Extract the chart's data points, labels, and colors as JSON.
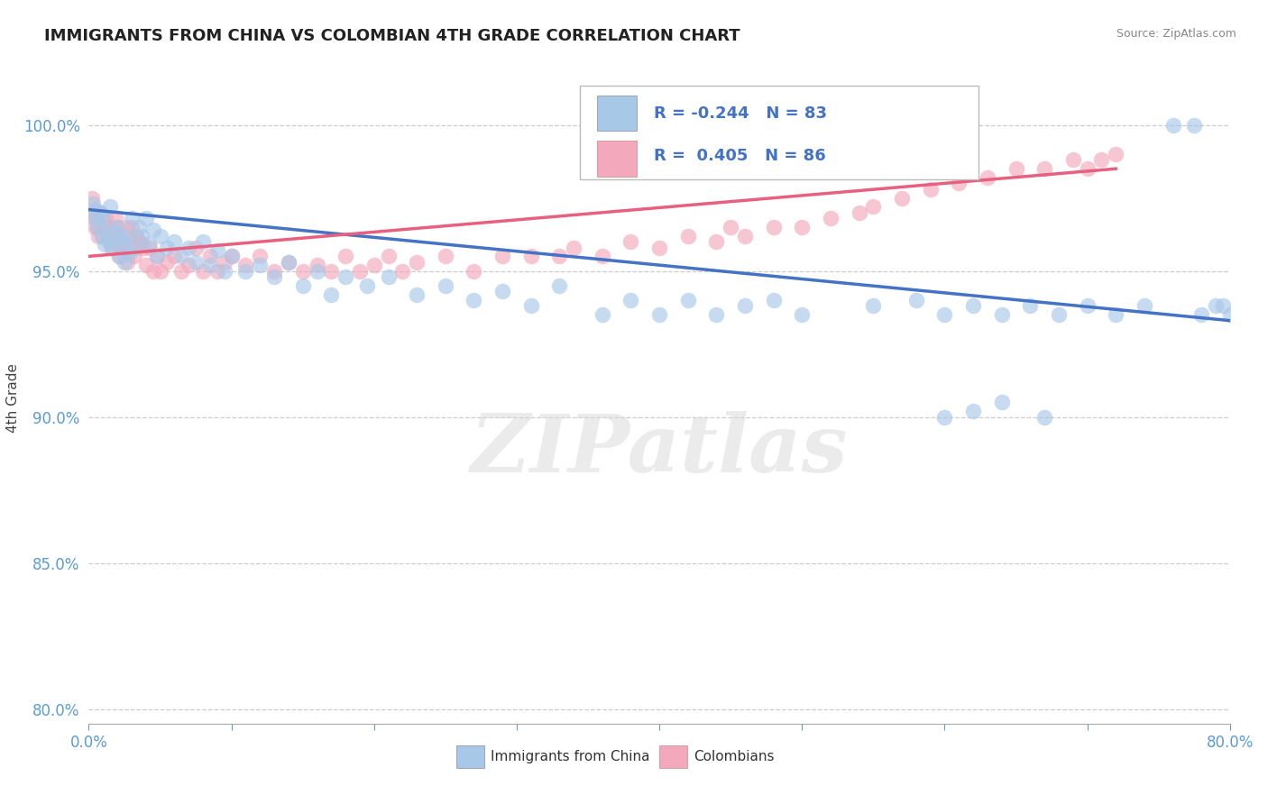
{
  "title": "IMMIGRANTS FROM CHINA VS COLOMBIAN 4TH GRADE CORRELATION CHART",
  "source_text": "Source: ZipAtlas.com",
  "ylabel": "4th Grade",
  "x_ticks": [
    0.0,
    10.0,
    20.0,
    30.0,
    40.0,
    50.0,
    60.0,
    70.0,
    80.0
  ],
  "y_ticks": [
    80.0,
    85.0,
    90.0,
    95.0,
    100.0
  ],
  "y_tick_labels": [
    "80.0%",
    "85.0%",
    "90.0%",
    "95.0%",
    "100.0%"
  ],
  "xlim": [
    0.0,
    80.0
  ],
  "ylim": [
    79.5,
    101.8
  ],
  "R_blue": -0.244,
  "N_blue": 83,
  "R_pink": 0.405,
  "N_pink": 86,
  "blue_dot_color": "#a8c8e8",
  "pink_dot_color": "#f4a8bc",
  "blue_line_color": "#4472c4",
  "pink_line_color": "#e86080",
  "legend_label_blue": "Immigrants from China",
  "legend_label_pink": "Colombians",
  "watermark": "ZIPatlas",
  "blue_line_x0": 0.0,
  "blue_line_y0": 97.1,
  "blue_line_x1": 80.0,
  "blue_line_y1": 93.3,
  "pink_line_x0": 0.0,
  "pink_line_y0": 95.5,
  "pink_line_x1": 72.0,
  "pink_line_y1": 98.5,
  "blue_scatter_x": [
    0.3,
    0.4,
    0.5,
    0.6,
    0.8,
    0.9,
    1.0,
    1.1,
    1.2,
    1.4,
    1.5,
    1.7,
    1.8,
    2.0,
    2.1,
    2.2,
    2.4,
    2.5,
    2.7,
    2.8,
    3.0,
    3.2,
    3.5,
    3.7,
    4.0,
    4.2,
    4.5,
    4.8,
    5.0,
    5.5,
    6.0,
    6.5,
    7.0,
    7.5,
    8.0,
    8.5,
    9.0,
    9.5,
    10.0,
    11.0,
    12.0,
    13.0,
    14.0,
    15.0,
    16.0,
    17.0,
    18.0,
    19.5,
    21.0,
    23.0,
    25.0,
    27.0,
    29.0,
    31.0,
    33.0,
    36.0,
    38.0,
    40.0,
    42.0,
    44.0,
    46.0,
    48.0,
    50.0,
    55.0,
    58.0,
    60.0,
    62.0,
    64.0,
    66.0,
    68.0,
    70.0,
    72.0,
    74.0,
    76.0,
    77.5,
    78.0,
    79.0,
    79.5,
    80.0,
    60.0,
    62.0,
    64.0,
    67.0
  ],
  "blue_scatter_y": [
    97.3,
    96.8,
    97.1,
    96.5,
    97.0,
    96.2,
    96.8,
    95.9,
    96.4,
    96.0,
    97.2,
    95.8,
    96.3,
    96.5,
    95.5,
    96.1,
    96.0,
    95.3,
    96.2,
    95.6,
    96.8,
    95.8,
    96.5,
    96.2,
    96.8,
    95.9,
    96.4,
    95.5,
    96.2,
    95.8,
    96.0,
    95.5,
    95.8,
    95.3,
    96.0,
    95.2,
    95.7,
    95.0,
    95.5,
    95.0,
    95.2,
    94.8,
    95.3,
    94.5,
    95.0,
    94.2,
    94.8,
    94.5,
    94.8,
    94.2,
    94.5,
    94.0,
    94.3,
    93.8,
    94.5,
    93.5,
    94.0,
    93.5,
    94.0,
    93.5,
    93.8,
    94.0,
    93.5,
    93.8,
    94.0,
    93.5,
    93.8,
    93.5,
    93.8,
    93.5,
    93.8,
    93.5,
    93.8,
    100.0,
    100.0,
    93.5,
    93.8,
    93.8,
    93.5,
    90.0,
    90.2,
    90.5,
    90.0
  ],
  "pink_scatter_x": [
    0.2,
    0.3,
    0.5,
    0.6,
    0.8,
    1.0,
    1.1,
    1.2,
    1.4,
    1.5,
    1.6,
    1.8,
    2.0,
    2.1,
    2.3,
    2.5,
    2.7,
    2.9,
    3.0,
    3.2,
    3.5,
    3.8,
    4.0,
    4.3,
    4.5,
    4.8,
    5.0,
    5.5,
    6.0,
    6.5,
    7.0,
    7.5,
    8.0,
    8.5,
    9.0,
    9.5,
    10.0,
    11.0,
    12.0,
    13.0,
    14.0,
    15.0,
    16.0,
    17.0,
    18.0,
    19.0,
    20.0,
    21.0,
    22.0,
    23.0,
    25.0,
    27.0,
    29.0,
    31.0,
    33.0,
    34.0,
    36.0,
    38.0,
    40.0,
    42.0,
    44.0,
    45.0,
    46.0,
    48.0,
    50.0,
    52.0,
    54.0,
    55.0,
    57.0,
    59.0,
    61.0,
    63.0,
    65.0,
    67.0,
    69.0,
    70.0,
    71.0,
    72.0,
    0.4,
    0.7,
    1.3,
    1.9,
    2.2,
    2.6,
    3.3,
    3.6
  ],
  "pink_scatter_y": [
    97.5,
    97.0,
    96.8,
    96.5,
    97.0,
    96.2,
    96.5,
    96.8,
    96.0,
    96.4,
    95.8,
    96.2,
    96.5,
    95.5,
    96.0,
    95.8,
    95.3,
    96.0,
    96.5,
    95.5,
    96.0,
    95.8,
    95.2,
    95.8,
    95.0,
    95.5,
    95.0,
    95.3,
    95.5,
    95.0,
    95.2,
    95.8,
    95.0,
    95.5,
    95.0,
    95.3,
    95.5,
    95.2,
    95.5,
    95.0,
    95.3,
    95.0,
    95.2,
    95.0,
    95.5,
    95.0,
    95.2,
    95.5,
    95.0,
    95.3,
    95.5,
    95.0,
    95.5,
    95.5,
    95.5,
    95.8,
    95.5,
    96.0,
    95.8,
    96.2,
    96.0,
    96.5,
    96.2,
    96.5,
    96.5,
    96.8,
    97.0,
    97.2,
    97.5,
    97.8,
    98.0,
    98.2,
    98.5,
    98.5,
    98.8,
    98.5,
    98.8,
    99.0,
    96.5,
    96.2,
    96.5,
    96.8,
    95.8,
    96.5,
    96.2,
    96.0
  ]
}
